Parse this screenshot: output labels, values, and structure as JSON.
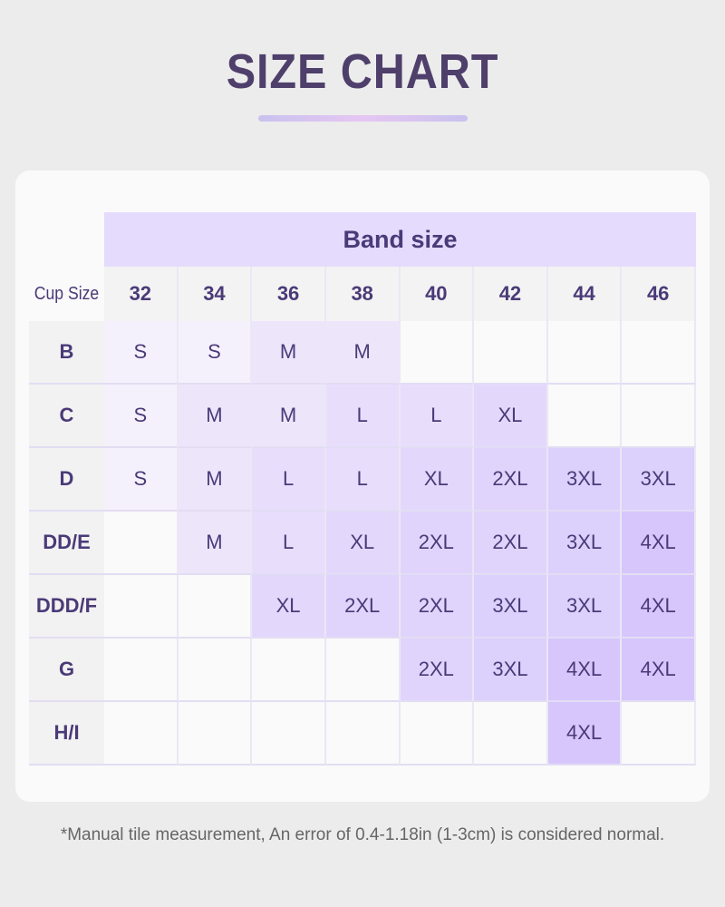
{
  "title": "SIZE CHART",
  "table": {
    "band_header": "Band size",
    "cup_header": "Cup Size",
    "bands": [
      "32",
      "34",
      "36",
      "38",
      "40",
      "42",
      "44",
      "46"
    ],
    "rows": [
      {
        "cup": "B",
        "sizes": [
          "S",
          "S",
          "M",
          "M",
          "",
          "",
          "",
          ""
        ]
      },
      {
        "cup": "C",
        "sizes": [
          "S",
          "M",
          "M",
          "L",
          "L",
          "XL",
          "",
          ""
        ]
      },
      {
        "cup": "D",
        "sizes": [
          "S",
          "M",
          "L",
          "L",
          "XL",
          "2XL",
          "3XL",
          "3XL"
        ]
      },
      {
        "cup": "DD/E",
        "sizes": [
          "",
          "M",
          "L",
          "XL",
          "2XL",
          "2XL",
          "3XL",
          "4XL"
        ]
      },
      {
        "cup": "DDD/F",
        "sizes": [
          "",
          "",
          "XL",
          "2XL",
          "2XL",
          "3XL",
          "3XL",
          "4XL"
        ]
      },
      {
        "cup": "G",
        "sizes": [
          "",
          "",
          "",
          "",
          "2XL",
          "3XL",
          "4XL",
          "4XL"
        ]
      },
      {
        "cup": "H/I",
        "sizes": [
          "",
          "",
          "",
          "",
          "",
          "",
          "4XL",
          ""
        ]
      }
    ]
  },
  "size_colors": {
    "S": "#f5f1fc",
    "M": "#ede6fb",
    "L": "#e8defc",
    "XL": "#e3d8fc",
    "2XL": "#e0d4fc",
    "3XL": "#dcd0fc",
    "4XL": "#d6c6fc",
    "": "#fafafa"
  },
  "footnote": "*Manual tile measurement, An error of 0.4-1.18in (1-3cm) is considered normal."
}
